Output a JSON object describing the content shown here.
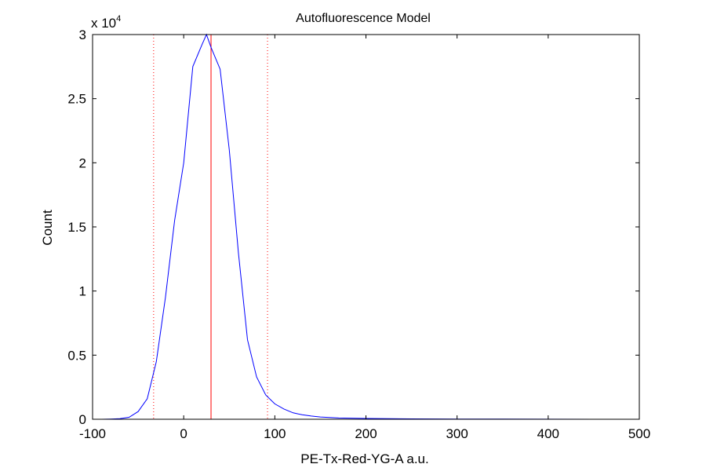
{
  "chart_data": {
    "type": "line",
    "title": "Autofluorescence Model",
    "xlabel": "PE-Tx-Red-YG-A a.u.",
    "ylabel": "Count",
    "xlim": [
      -100,
      500
    ],
    "ylim": [
      0,
      30000
    ],
    "x_ticks": [
      -100,
      0,
      100,
      200,
      300,
      400,
      500
    ],
    "y_ticks": [
      0,
      5000,
      10000,
      15000,
      20000,
      25000,
      30000
    ],
    "x_tick_labels": [
      "-100",
      "0",
      "100",
      "200",
      "300",
      "400",
      "500"
    ],
    "y_tick_labels": [
      "0",
      "0.5",
      "1",
      "1.5",
      "2",
      "2.5",
      "3"
    ],
    "y_multiplier_base": "x 10",
    "y_multiplier_exponent": "4",
    "grid": false,
    "series": [
      {
        "color": "#0000ff",
        "x": [
          -90,
          -80,
          -70,
          -60,
          -50,
          -40,
          -30,
          -20,
          -10,
          0,
          10,
          20,
          25,
          30,
          40,
          50,
          60,
          70,
          80,
          90,
          100,
          110,
          120,
          130,
          140,
          150,
          170,
          200,
          250,
          300,
          350,
          400,
          450,
          495
        ],
        "y": [
          0,
          20,
          50,
          150,
          600,
          1600,
          4500,
          9500,
          15500,
          20000,
          27500,
          29200,
          30000,
          29000,
          27300,
          21000,
          13000,
          6200,
          3300,
          1900,
          1200,
          800,
          500,
          350,
          250,
          180,
          100,
          60,
          30,
          20,
          10,
          5,
          2,
          0
        ]
      }
    ],
    "vlines": [
      {
        "x": 30,
        "color": "#ff0000",
        "style": "solid"
      },
      {
        "x": -33,
        "color": "#ff0000",
        "style": "dotted"
      },
      {
        "x": 92,
        "color": "#ff0000",
        "style": "dotted"
      }
    ]
  }
}
